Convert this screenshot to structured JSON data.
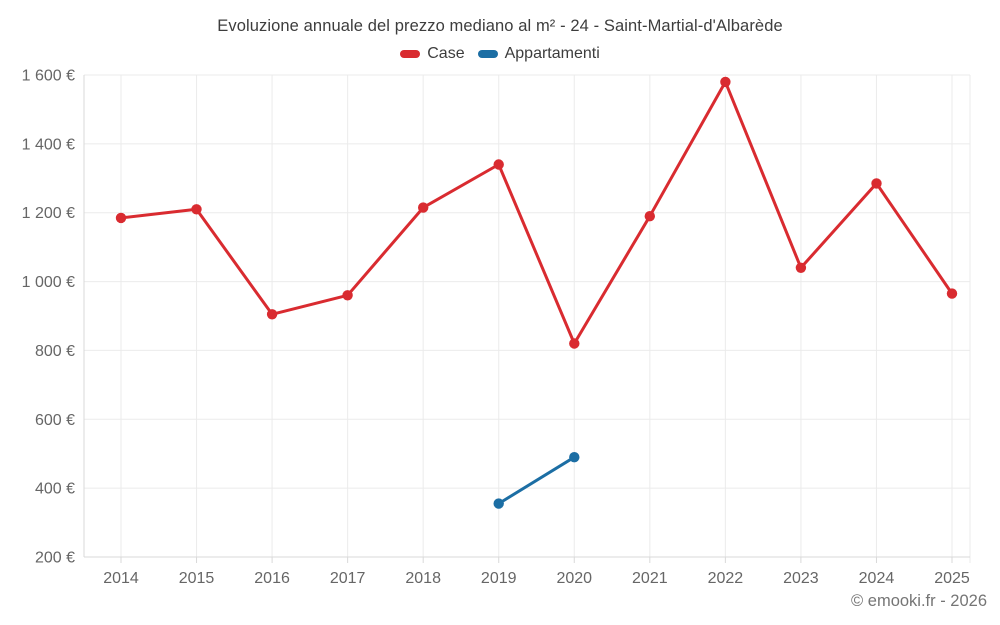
{
  "page": {
    "footer_credit": "© emooki.fr - 2026"
  },
  "chart_data": {
    "type": "line",
    "title": "Evoluzione annuale del prezzo mediano al m² - 24 - Saint-Martial-d'Albarède",
    "categories": [
      "2014",
      "2015",
      "2016",
      "2017",
      "2018",
      "2019",
      "2020",
      "2021",
      "2022",
      "2023",
      "2024",
      "2025"
    ],
    "series": [
      {
        "name": "Case",
        "color": "#d92b30",
        "values": [
          1185,
          1210,
          905,
          960,
          1215,
          1340,
          820,
          1190,
          1580,
          1040,
          1285,
          965
        ]
      },
      {
        "name": "Appartamenti",
        "color": "#1c6ea4",
        "values": [
          null,
          null,
          null,
          null,
          null,
          355,
          490,
          null,
          null,
          null,
          null,
          null
        ]
      }
    ],
    "xlabel": "",
    "ylabel": "",
    "ylim": [
      200,
      1600
    ],
    "yticks": [
      200,
      400,
      600,
      800,
      1000,
      1200,
      1400,
      1600
    ],
    "ytick_suffix": " €",
    "grid": true,
    "legend_position": "top"
  }
}
